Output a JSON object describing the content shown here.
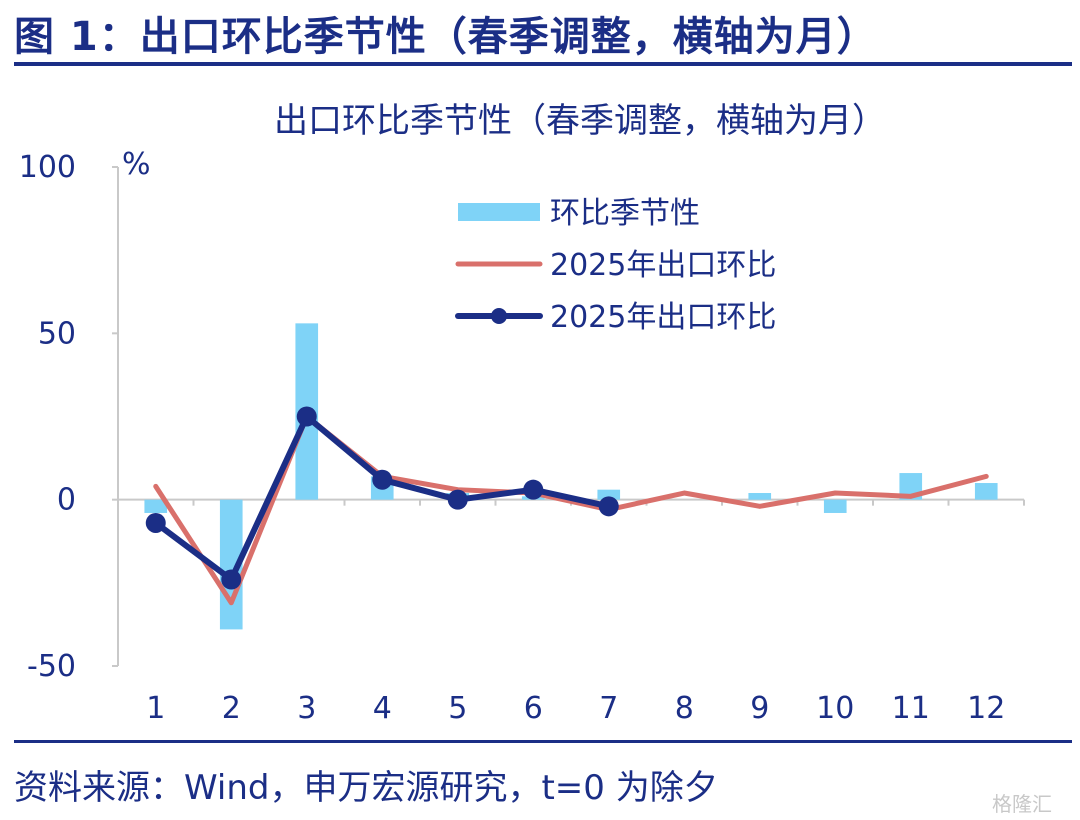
{
  "figure": {
    "title": "图 1：出口环比季节性（春季调整，横轴为月）",
    "source": "资料来源：Wind，申万宏源研究，t=0 为除夕",
    "watermark": "格隆汇"
  },
  "chart_data": {
    "type": "bar",
    "title": "出口环比季节性（春季调整，横轴为月）",
    "ylabel": "%",
    "xlabel": "",
    "ylim": [
      -50,
      100
    ],
    "yticks": [
      -50,
      0,
      50,
      100
    ],
    "categories": [
      "1",
      "2",
      "3",
      "4",
      "5",
      "6",
      "7",
      "8",
      "9",
      "10",
      "11",
      "12"
    ],
    "legend_position": "top-right",
    "grid": false,
    "series": [
      {
        "name": "环比季节性",
        "type": "bar",
        "color": "#7fd3f7",
        "values": [
          -4,
          -39,
          53,
          7,
          2,
          1,
          3,
          0,
          2,
          -4,
          8,
          5
        ]
      },
      {
        "name": "2025年出口环比",
        "type": "line",
        "color": "#d9706b",
        "values": [
          4,
          -31,
          25,
          7,
          3,
          2,
          -3,
          2,
          -2,
          2,
          1,
          7
        ]
      },
      {
        "name": "2025年出口环比",
        "type": "line-markers",
        "color": "#1b2e86",
        "values": [
          -7,
          -24,
          25,
          6,
          0,
          3,
          -2,
          null,
          null,
          null,
          null,
          null
        ]
      }
    ]
  }
}
